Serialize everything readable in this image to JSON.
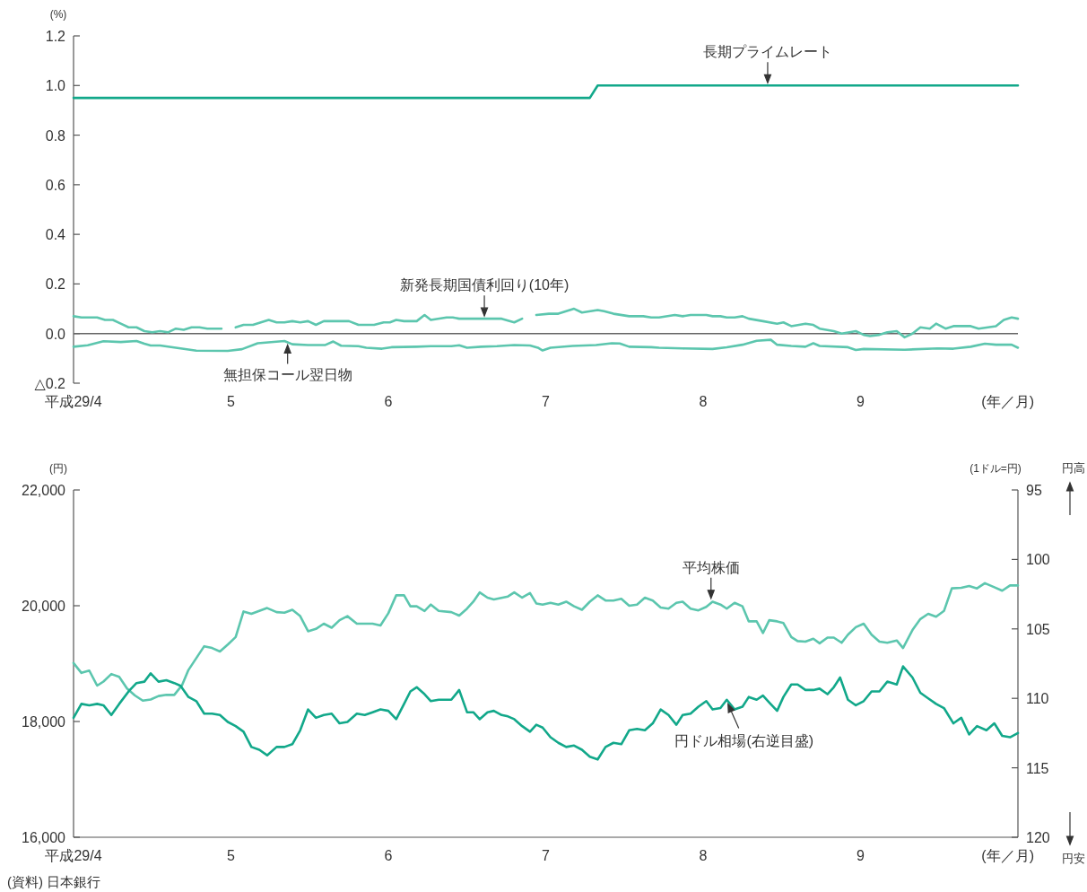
{
  "chart_data": [
    {
      "type": "line",
      "ylabel": "(%)",
      "xlabel": "(年／月)",
      "xlim": [
        4,
        10
      ],
      "xticks": [
        {
          "value": 4,
          "label": "平成29/4"
        },
        5,
        6,
        7,
        8,
        9
      ],
      "ylim": [
        -0.2,
        1.2
      ],
      "yticks": [
        {
          "value": -0.2,
          "label": "△0.2"
        },
        {
          "value": 0,
          "label": "0.0"
        },
        0.2,
        0.4,
        0.6,
        0.8,
        {
          "value": 1,
          "label": "1.0"
        },
        1.2
      ],
      "grid": false,
      "marker": "none",
      "line_style": "solid",
      "ref_lines": [
        {
          "axis": "y",
          "value": 0,
          "color": "#666666"
        }
      ],
      "series": [
        {
          "color": "#12a88a",
          "x": [
            4,
            7.28,
            7.33,
            10
          ],
          "values": [
            0.95,
            0.95,
            1.0,
            1.0
          ]
        },
        {
          "color": "#5cc6ae",
          "x": [
            4,
            4.05,
            4.1,
            4.15,
            4.2,
            4.25,
            4.3,
            4.35,
            4.4,
            4.45,
            4.5,
            4.55,
            4.6,
            4.65,
            4.7,
            4.75,
            4.8,
            4.85,
            4.94,
            4.98,
            5.03,
            5.08,
            5.14,
            5.24,
            5.29,
            5.34,
            5.39,
            5.44,
            5.49,
            5.54,
            5.59,
            5.75,
            5.81,
            5.91,
            5.97,
            6.01,
            6.05,
            6.1,
            6.18,
            6.23,
            6.27,
            6.37,
            6.41,
            6.45,
            6.72,
            6.8,
            6.85,
            6.89,
            6.94,
            7.02,
            7.08,
            7.18,
            7.23,
            7.33,
            7.37,
            7.43,
            7.53,
            7.62,
            7.67,
            7.72,
            7.82,
            7.87,
            7.92,
            8.02,
            8.06,
            8.11,
            8.15,
            8.2,
            8.25,
            8.29,
            8.38,
            8.47,
            8.51,
            8.56,
            8.65,
            8.7,
            8.74,
            8.83,
            8.88,
            8.97,
            9.02,
            9.06,
            9.12,
            9.17,
            9.23,
            9.28,
            9.33,
            9.38,
            9.44,
            9.48,
            9.54,
            9.59,
            9.7,
            9.75,
            9.86,
            9.91,
            9.96,
            10
          ],
          "values": [
            0.07,
            0.065,
            0.065,
            0.065,
            0.055,
            0.055,
            0.04,
            0.025,
            0.025,
            0.01,
            0.005,
            0.01,
            0.005,
            0.02,
            0.015,
            0.025,
            0.025,
            0.02,
            0.02,
            null,
            0.025,
            0.035,
            0.035,
            0.055,
            0.045,
            0.045,
            0.05,
            0.045,
            0.05,
            0.035,
            0.05,
            0.05,
            0.035,
            0.035,
            0.045,
            0.045,
            0.055,
            0.05,
            0.05,
            0.075,
            0.055,
            0.065,
            0.065,
            0.06,
            0.06,
            0.045,
            0.06,
            null,
            0.075,
            0.08,
            0.08,
            0.1,
            0.085,
            0.095,
            0.09,
            0.08,
            0.07,
            0.07,
            0.065,
            0.065,
            0.075,
            0.07,
            0.075,
            0.075,
            0.07,
            0.07,
            0.065,
            0.065,
            0.07,
            0.06,
            0.05,
            0.04,
            0.045,
            0.03,
            0.04,
            0.035,
            0.02,
            0.01,
            0,
            0.01,
            -0.005,
            -0.01,
            -0.005,
            0.005,
            0.01,
            -0.015,
            0,
            0.025,
            0.02,
            0.04,
            0.02,
            0.03,
            0.03,
            0.02,
            0.03,
            0.055,
            0.065,
            0.06
          ]
        },
        {
          "color": "#5cc6ae",
          "x": [
            4,
            4.09,
            4.19,
            4.3,
            4.4,
            4.45,
            4.49,
            4.55,
            4.65,
            4.78,
            4.98,
            5.07,
            5.17,
            5.34,
            5.39,
            5.49,
            5.6,
            5.65,
            5.7,
            5.81,
            5.86,
            5.96,
            6.02,
            6.18,
            6.27,
            6.4,
            6.45,
            6.5,
            6.59,
            6.69,
            6.8,
            6.9,
            6.95,
            6.98,
            7.03,
            7.17,
            7.32,
            7.42,
            7.47,
            7.53,
            7.67,
            7.72,
            7.87,
            8.06,
            8.15,
            8.25,
            8.34,
            8.43,
            8.47,
            8.56,
            8.65,
            8.7,
            8.74,
            8.92,
            8.97,
            9.02,
            9.28,
            9.49,
            9.59,
            9.7,
            9.79,
            9.86,
            9.96,
            10
          ],
          "values": [
            -0.053,
            -0.047,
            -0.031,
            -0.034,
            -0.03,
            -0.041,
            -0.048,
            -0.048,
            -0.057,
            -0.069,
            -0.07,
            -0.063,
            -0.039,
            -0.03,
            -0.043,
            -0.046,
            -0.046,
            -0.032,
            -0.049,
            -0.051,
            -0.057,
            -0.061,
            -0.055,
            -0.053,
            -0.051,
            -0.051,
            -0.047,
            -0.057,
            -0.053,
            -0.051,
            -0.046,
            -0.048,
            -0.057,
            -0.068,
            -0.057,
            -0.05,
            -0.046,
            -0.039,
            -0.04,
            -0.053,
            -0.055,
            -0.057,
            -0.06,
            -0.062,
            -0.055,
            -0.045,
            -0.029,
            -0.025,
            -0.045,
            -0.05,
            -0.053,
            -0.039,
            -0.05,
            -0.055,
            -0.066,
            -0.062,
            -0.065,
            -0.06,
            -0.061,
            -0.053,
            -0.041,
            -0.045,
            -0.045,
            -0.057
          ]
        }
      ],
      "annotations": [
        {
          "text": "長期プライムレート",
          "x": 8.41,
          "y": 1.0
        },
        {
          "text": "新発長期国債利回り(10年)",
          "x": 6.61,
          "y": 0.06
        },
        {
          "text": "無担保コール翌日物",
          "x": 5.36,
          "y": -0.035
        }
      ]
    },
    {
      "type": "line",
      "ylabel": "(円)",
      "y2label": "(1ドル=円)",
      "xlabel": "(年／月)",
      "xlim": [
        4,
        10
      ],
      "xticks": [
        {
          "value": 4,
          "label": "平成29/4"
        },
        5,
        6,
        7,
        8,
        9
      ],
      "ylim": [
        16000,
        22000
      ],
      "yticks": [
        {
          "value": 16000,
          "label": "16,000"
        },
        {
          "value": 18000,
          "label": "18,000"
        },
        {
          "value": 20000,
          "label": "20,000"
        },
        {
          "value": 22000,
          "label": "22,000"
        }
      ],
      "y2lim": [
        120,
        95
      ],
      "y2ticks": [
        95,
        100,
        105,
        110,
        115,
        120
      ],
      "grid": false,
      "marker": "none",
      "line_style": "solid",
      "series": [
        {
          "color": "#5cc6ae",
          "x": [
            4,
            4.05,
            4.1,
            4.15,
            4.19,
            4.24,
            4.29,
            4.34,
            4.39,
            4.44,
            4.49,
            4.54,
            4.59,
            4.64,
            4.69,
            4.73,
            4.83,
            4.88,
            4.93,
            4.98,
            5.03,
            5.08,
            5.13,
            5.23,
            5.29,
            5.34,
            5.39,
            5.44,
            5.49,
            5.54,
            5.59,
            5.64,
            5.69,
            5.74,
            5.8,
            5.9,
            5.95,
            6,
            6.05,
            6.1,
            6.14,
            6.18,
            6.23,
            6.27,
            6.32,
            6.4,
            6.45,
            6.5,
            6.54,
            6.58,
            6.63,
            6.67,
            6.76,
            6.8,
            6.85,
            6.9,
            6.94,
            6.98,
            7.03,
            7.08,
            7.13,
            7.18,
            7.23,
            7.28,
            7.33,
            7.38,
            7.43,
            7.48,
            7.53,
            7.58,
            7.63,
            7.68,
            7.73,
            7.78,
            7.83,
            7.87,
            7.92,
            7.97,
            8.02,
            8.06,
            8.11,
            8.15,
            8.2,
            8.25,
            8.29,
            8.34,
            8.38,
            8.42,
            8.47,
            8.51,
            8.56,
            8.6,
            8.65,
            8.7,
            8.74,
            8.79,
            8.83,
            8.88,
            8.92,
            8.97,
            9.02,
            9.07,
            9.12,
            9.17,
            9.23,
            9.27,
            9.33,
            9.38,
            9.43,
            9.48,
            9.53,
            9.58,
            9.64,
            9.69,
            9.74,
            9.79,
            9.85,
            9.9,
            9.95,
            10
          ],
          "values": [
            19010,
            18840,
            18880,
            18620,
            18690,
            18820,
            18770,
            18570,
            18450,
            18360,
            18380,
            18440,
            18460,
            18460,
            18630,
            18890,
            19300,
            19270,
            19210,
            19330,
            19460,
            19900,
            19860,
            19960,
            19890,
            19880,
            19930,
            19820,
            19560,
            19600,
            19690,
            19620,
            19750,
            19820,
            19690,
            19690,
            19660,
            19870,
            20180,
            20180,
            19990,
            19990,
            19910,
            20020,
            19910,
            19890,
            19830,
            19950,
            20070,
            20230,
            20140,
            20110,
            20160,
            20230,
            20140,
            20220,
            20040,
            20020,
            20050,
            20020,
            20070,
            19990,
            19930,
            20070,
            20180,
            20090,
            20090,
            20120,
            20000,
            20020,
            20140,
            20090,
            19970,
            19950,
            20050,
            20070,
            19950,
            19920,
            19980,
            20070,
            20020,
            19950,
            20050,
            19990,
            19730,
            19730,
            19530,
            19750,
            19730,
            19700,
            19460,
            19390,
            19380,
            19430,
            19350,
            19450,
            19450,
            19360,
            19500,
            19630,
            19690,
            19500,
            19380,
            19360,
            19400,
            19270,
            19580,
            19770,
            19860,
            19810,
            19910,
            20300,
            20310,
            20340,
            20300,
            20390,
            20320,
            20260,
            20350,
            20350
          ]
        },
        {
          "color": "#12a88a",
          "axis": "y2",
          "x": [
            4,
            4.05,
            4.1,
            4.15,
            4.19,
            4.24,
            4.29,
            4.35,
            4.4,
            4.45,
            4.49,
            4.54,
            4.59,
            4.64,
            4.68,
            4.73,
            4.78,
            4.83,
            4.88,
            4.93,
            4.98,
            5.03,
            5.08,
            5.13,
            5.18,
            5.23,
            5.29,
            5.34,
            5.39,
            5.44,
            5.49,
            5.54,
            5.59,
            5.64,
            5.69,
            5.74,
            5.8,
            5.85,
            5.9,
            5.95,
            6,
            6.05,
            6.1,
            6.14,
            6.18,
            6.23,
            6.27,
            6.32,
            6.36,
            6.4,
            6.45,
            6.5,
            6.54,
            6.58,
            6.63,
            6.67,
            6.72,
            6.76,
            6.8,
            6.85,
            6.9,
            6.94,
            6.98,
            7.03,
            7.08,
            7.13,
            7.18,
            7.23,
            7.28,
            7.33,
            7.38,
            7.43,
            7.48,
            7.53,
            7.58,
            7.63,
            7.68,
            7.73,
            7.78,
            7.83,
            7.87,
            7.92,
            7.97,
            8.02,
            8.06,
            8.11,
            8.15,
            8.2,
            8.25,
            8.29,
            8.34,
            8.38,
            8.42,
            8.47,
            8.51,
            8.56,
            8.6,
            8.65,
            8.7,
            8.74,
            8.79,
            8.83,
            8.87,
            8.92,
            8.97,
            9.02,
            9.07,
            9.12,
            9.17,
            9.23,
            9.27,
            9.33,
            9.38,
            9.43,
            9.48,
            9.53,
            9.59,
            9.64,
            9.69,
            9.74,
            9.8,
            9.85,
            9.9,
            9.95,
            10
          ],
          "values": [
            111.4,
            110.4,
            110.5,
            110.4,
            110.5,
            111.2,
            110.4,
            109.5,
            108.9,
            108.8,
            108.2,
            108.8,
            108.7,
            108.9,
            109.1,
            109.9,
            110.2,
            111.1,
            111.1,
            111.2,
            111.7,
            112.0,
            112.4,
            113.5,
            113.7,
            114.1,
            113.5,
            113.5,
            113.3,
            112.3,
            110.8,
            111.4,
            111.2,
            111.1,
            111.8,
            111.7,
            111.1,
            111.2,
            111.0,
            110.8,
            110.9,
            111.5,
            110.4,
            109.5,
            109.2,
            109.7,
            110.2,
            110.1,
            110.1,
            110.1,
            109.4,
            111.0,
            111.0,
            111.5,
            111.0,
            110.9,
            111.2,
            111.3,
            111.5,
            112.0,
            112.4,
            111.9,
            112.1,
            112.8,
            113.2,
            113.5,
            113.4,
            113.7,
            114.2,
            114.4,
            113.5,
            113.2,
            113.3,
            112.3,
            112.2,
            112.3,
            111.8,
            110.8,
            111.2,
            111.9,
            111.2,
            111.1,
            110.6,
            110.2,
            110.8,
            110.7,
            110.1,
            110.8,
            110.6,
            109.9,
            110.1,
            109.8,
            110.3,
            110.9,
            109.9,
            109.0,
            109.0,
            109.4,
            109.4,
            109.3,
            109.7,
            109.2,
            108.5,
            110.1,
            110.5,
            110.2,
            109.5,
            109.5,
            108.8,
            109.0,
            107.7,
            108.5,
            109.6,
            110.0,
            110.4,
            110.7,
            111.8,
            111.4,
            112.6,
            112.0,
            112.3,
            111.8,
            112.7,
            112.8,
            112.5
          ]
        }
      ],
      "annotations": [
        {
          "text": "平均株価",
          "x": 8.05,
          "y": 20080
        },
        "円ドル相場(右逆目盛)",
        "円高",
        "円安",
        "(資料) 日本銀行"
      ]
    }
  ]
}
